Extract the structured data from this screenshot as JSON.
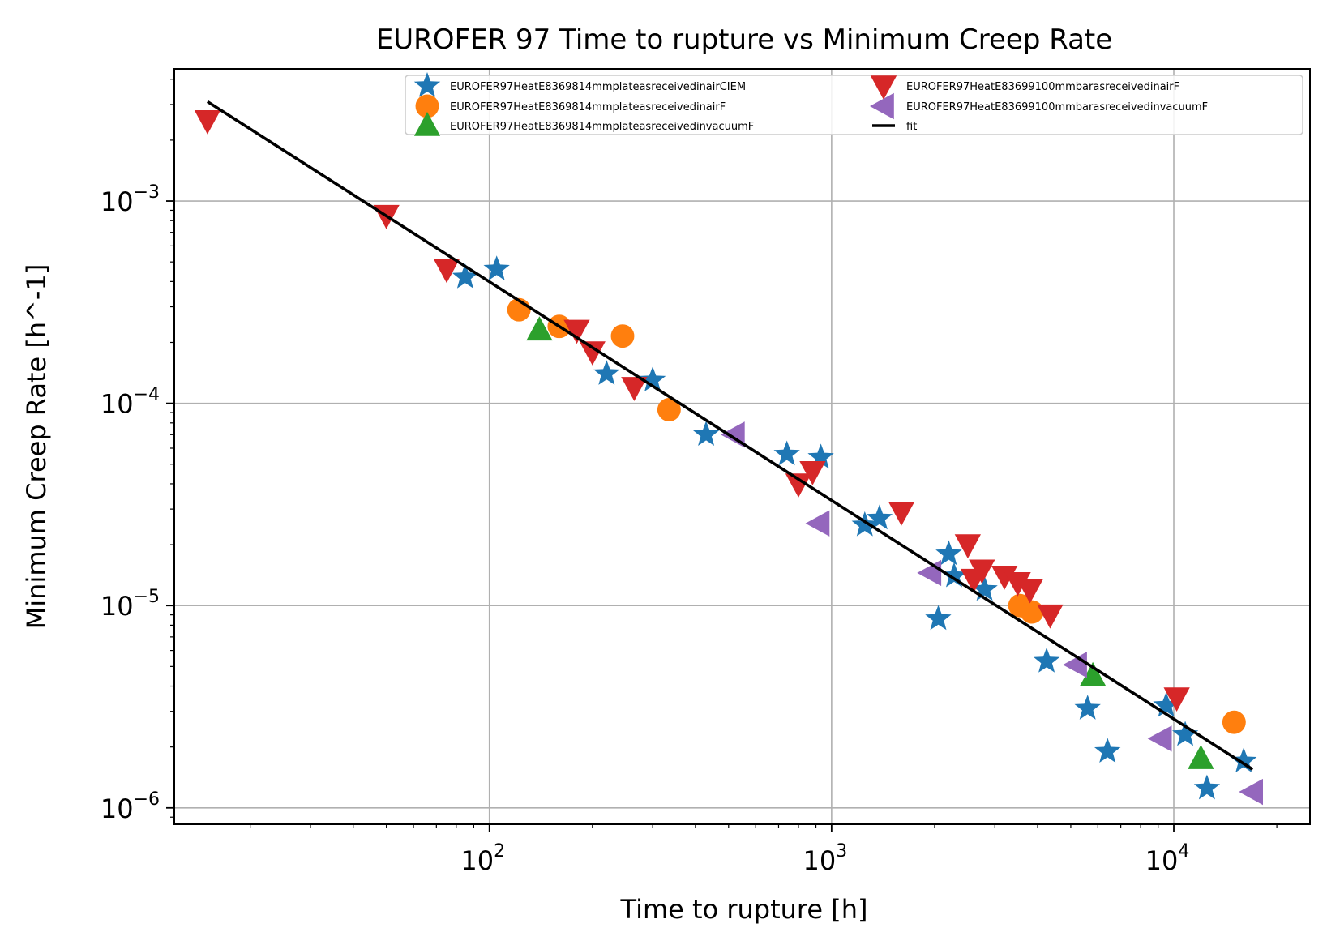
{
  "chart_data": {
    "type": "scatter",
    "title": "EUROFER 97 Time to rupture vs Minimum Creep Rate",
    "xlabel": "Time to rupture [h]",
    "ylabel": "Minimum Creep Rate [h^-1]",
    "x_scale": "log",
    "y_scale": "log",
    "xlim": [
      12,
      25000
    ],
    "ylim": [
      8.3e-07,
      0.0045
    ],
    "x_ticks": [
      {
        "value": 100,
        "base": "10",
        "exp": "2"
      },
      {
        "value": 1000,
        "base": "10",
        "exp": "3"
      },
      {
        "value": 10000,
        "base": "10",
        "exp": "4"
      }
    ],
    "y_ticks": [
      {
        "value": 0.001,
        "base": "10",
        "exp": "−3"
      },
      {
        "value": 0.0001,
        "base": "10",
        "exp": "−4"
      },
      {
        "value": 1e-05,
        "base": "10",
        "exp": "−5"
      },
      {
        "value": 1e-06,
        "base": "10",
        "exp": "−6"
      }
    ],
    "grid": true,
    "legend_position": "top-right",
    "legend_columns": 2,
    "series": [
      {
        "name": "EUROFER97HeatE8369814mmplateasreceivedinairCIEM",
        "marker": "star",
        "color": "#1f77b4",
        "points": [
          [
            85,
            0.00042
          ],
          [
            105,
            0.00046
          ],
          [
            220,
            0.00014
          ],
          [
            300,
            0.00013
          ],
          [
            430,
            7e-05
          ],
          [
            740,
            5.6e-05
          ],
          [
            930,
            5.4e-05
          ],
          [
            1250,
            2.5e-05
          ],
          [
            1380,
            2.7e-05
          ],
          [
            2050,
            8.6e-06
          ],
          [
            2200,
            1.8e-05
          ],
          [
            2280,
            1.4e-05
          ],
          [
            2800,
            1.2e-05
          ],
          [
            4250,
            5.3e-06
          ],
          [
            5600,
            3.1e-06
          ],
          [
            6400,
            1.9e-06
          ],
          [
            9500,
            3.2e-06
          ],
          [
            10800,
            2.3e-06
          ],
          [
            12500,
            1.25e-06
          ],
          [
            16000,
            1.7e-06
          ]
        ]
      },
      {
        "name": "EUROFER97HeatE8369814mmplateasreceivedinairF",
        "marker": "circle",
        "color": "#ff7f0e",
        "points": [
          [
            122,
            0.00029
          ],
          [
            160,
            0.00024
          ],
          [
            245,
            0.000215
          ],
          [
            335,
            9.3e-05
          ],
          [
            3550,
            1e-05
          ],
          [
            3850,
            9.3e-06
          ],
          [
            15000,
            2.65e-06
          ]
        ]
      },
      {
        "name": "EUROFER97HeatE8369814mmplateasreceivedinvacuumF",
        "marker": "triangle-up",
        "color": "#2ca02c",
        "points": [
          [
            140,
            0.00023
          ],
          [
            5800,
            4.5e-06
          ],
          [
            12000,
            1.75e-06
          ]
        ]
      },
      {
        "name": "EUROFER97HeatE83699100mmbarasreceivedinairF",
        "marker": "triangle-down",
        "color": "#d62728",
        "points": [
          [
            15,
            0.0025
          ],
          [
            50,
            0.00085
          ],
          [
            75,
            0.00046
          ],
          [
            180,
            0.00023
          ],
          [
            200,
            0.00018
          ],
          [
            265,
            0.00012
          ],
          [
            800,
            4e-05
          ],
          [
            880,
            4.6e-05
          ],
          [
            1600,
            2.9e-05
          ],
          [
            2500,
            2e-05
          ],
          [
            2600,
            1.35e-05
          ],
          [
            2750,
            1.5e-05
          ],
          [
            3200,
            1.4e-05
          ],
          [
            3500,
            1.3e-05
          ],
          [
            3800,
            1.2e-05
          ],
          [
            4350,
            9e-06
          ],
          [
            10200,
            3.5e-06
          ]
        ]
      },
      {
        "name": "EUROFER97HeatE83699100mmbarasreceivedinvacuumF",
        "marker": "triangle-left",
        "color": "#9467bd",
        "points": [
          [
            520,
            7e-05
          ],
          [
            920,
            2.55e-05
          ],
          [
            1950,
            1.45e-05
          ],
          [
            5200,
            5.1e-06
          ],
          [
            9200,
            2.2e-06
          ],
          [
            17000,
            1.2e-06
          ]
        ]
      },
      {
        "name": "fit",
        "marker": "line",
        "color": "#000000",
        "points": [
          [
            15,
            0.0031
          ],
          [
            17000,
            1.55e-06
          ]
        ]
      }
    ]
  }
}
